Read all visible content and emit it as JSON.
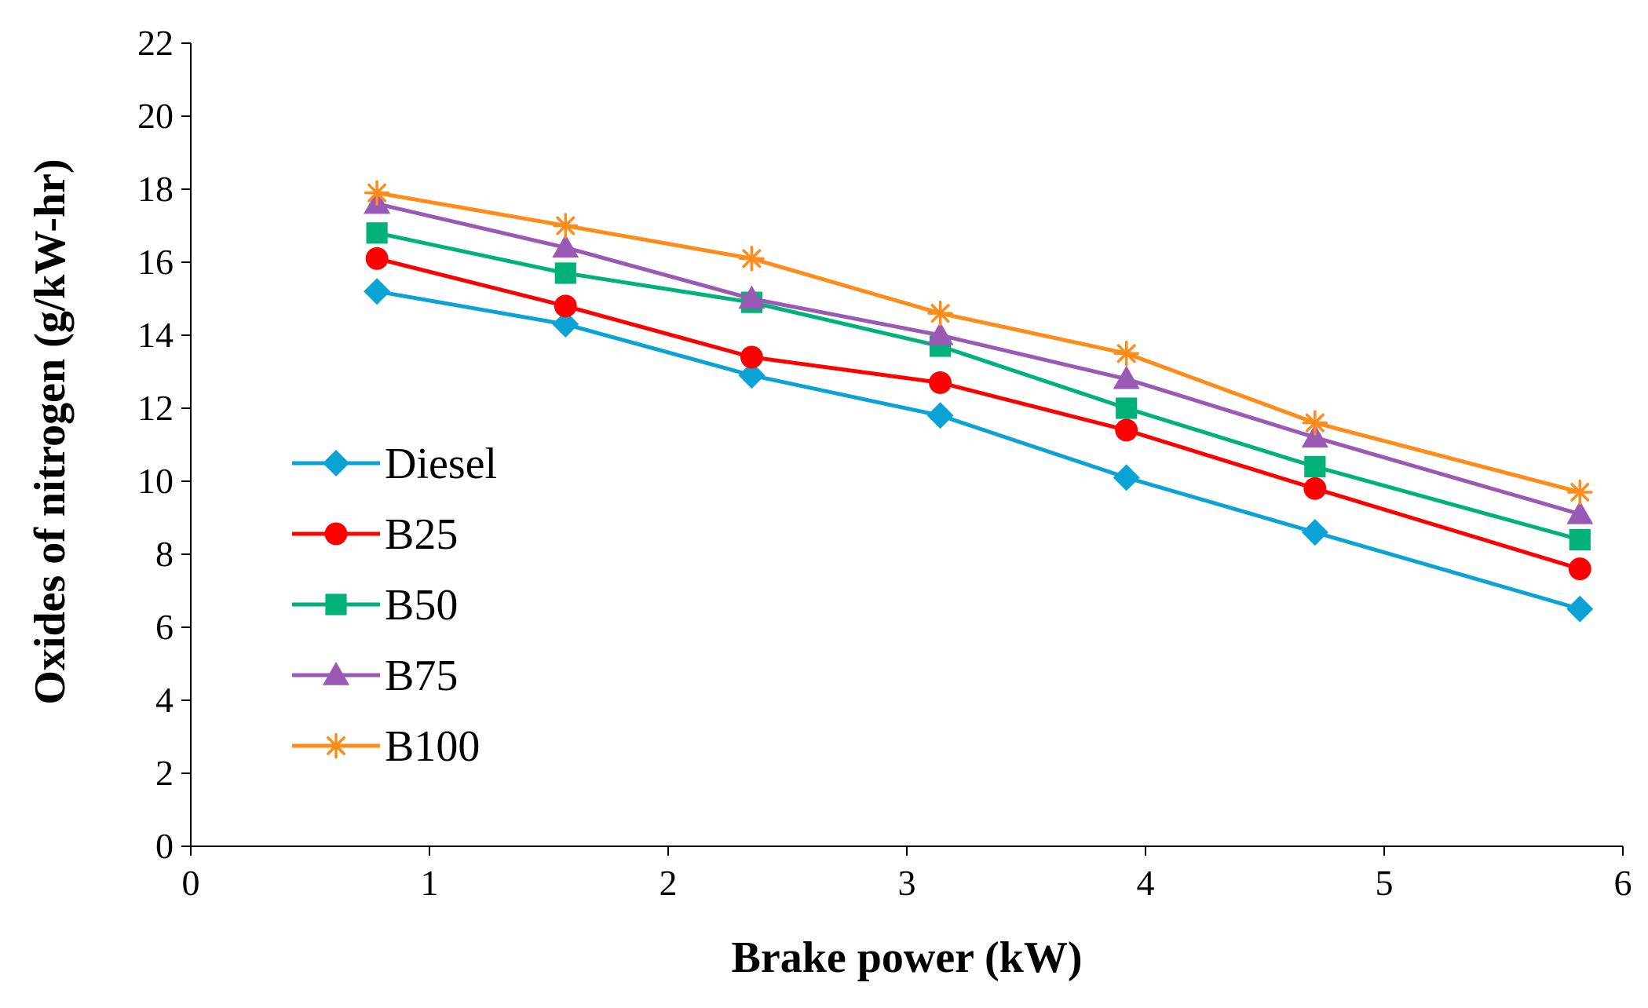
{
  "chart_data": {
    "type": "line",
    "title": "",
    "xlabel": "Brake power (kW)",
    "ylabel": "Oxides of nitrogen (g/kW-hr)",
    "xlim": [
      0,
      6
    ],
    "ylim": [
      0,
      22
    ],
    "xticks": [
      0,
      1,
      2,
      3,
      4,
      5,
      6
    ],
    "yticks": [
      0,
      2,
      4,
      6,
      8,
      10,
      12,
      14,
      16,
      18,
      20,
      22
    ],
    "grid": false,
    "legend_position": "left",
    "x": [
      0.78,
      1.57,
      2.35,
      3.14,
      3.92,
      4.71,
      5.82
    ],
    "series": [
      {
        "name": "Diesel",
        "color": "#0BA3D6",
        "marker": "diamond",
        "values": [
          15.2,
          14.3,
          12.9,
          11.8,
          10.1,
          8.6,
          6.5
        ]
      },
      {
        "name": "B25",
        "color": "#FF0000",
        "marker": "circle",
        "values": [
          16.1,
          14.8,
          13.4,
          12.7,
          11.4,
          9.8,
          7.6
        ]
      },
      {
        "name": "B50",
        "color": "#00B27A",
        "marker": "square",
        "values": [
          16.8,
          15.7,
          14.9,
          13.7,
          12.0,
          10.4,
          8.4
        ]
      },
      {
        "name": "B75",
        "color": "#9B59B6",
        "marker": "triangle",
        "values": [
          17.6,
          16.4,
          15.0,
          14.0,
          12.8,
          11.2,
          9.1
        ]
      },
      {
        "name": "B100",
        "color": "#FF8C1A",
        "marker": "star",
        "values": [
          17.9,
          17.0,
          16.1,
          14.6,
          13.5,
          11.6,
          9.7
        ]
      }
    ]
  }
}
